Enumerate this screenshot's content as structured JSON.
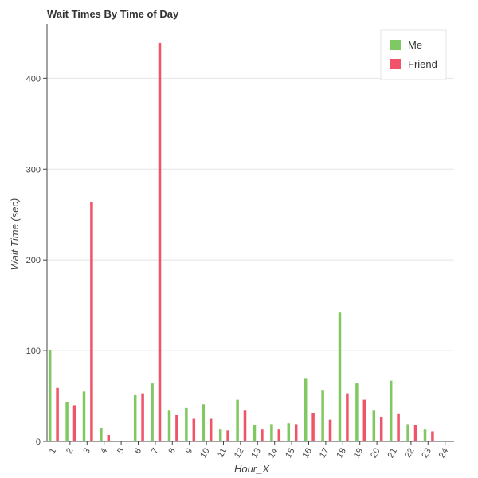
{
  "chart_data": {
    "type": "bar",
    "title": "Wait Times By Time of Day",
    "xlabel": "Hour_X",
    "ylabel": "Wait Time (sec)",
    "categories": [
      "1",
      "2",
      "3",
      "4",
      "5",
      "6",
      "7",
      "8",
      "9",
      "10",
      "11",
      "12",
      "13",
      "14",
      "15",
      "16",
      "17",
      "18",
      "19",
      "20",
      "21",
      "22",
      "23",
      "24"
    ],
    "ylim": [
      0,
      460
    ],
    "yticks": [
      0,
      100,
      200,
      300,
      400
    ],
    "grid": true,
    "legend_position": "top-right",
    "series": [
      {
        "name": "Me",
        "color": "#80c862",
        "values": [
          101,
          43,
          55,
          15,
          0,
          51,
          64,
          34,
          37,
          41,
          13,
          46,
          18,
          19,
          20,
          69,
          56,
          142,
          64,
          34,
          67,
          19,
          13,
          0
        ]
      },
      {
        "name": "Friend",
        "color": "#f05468",
        "values": [
          59,
          40,
          264,
          7,
          0,
          53,
          439,
          29,
          25,
          25,
          12,
          34,
          13,
          13,
          19,
          31,
          24,
          53,
          46,
          27,
          30,
          18,
          11,
          0
        ]
      }
    ]
  }
}
